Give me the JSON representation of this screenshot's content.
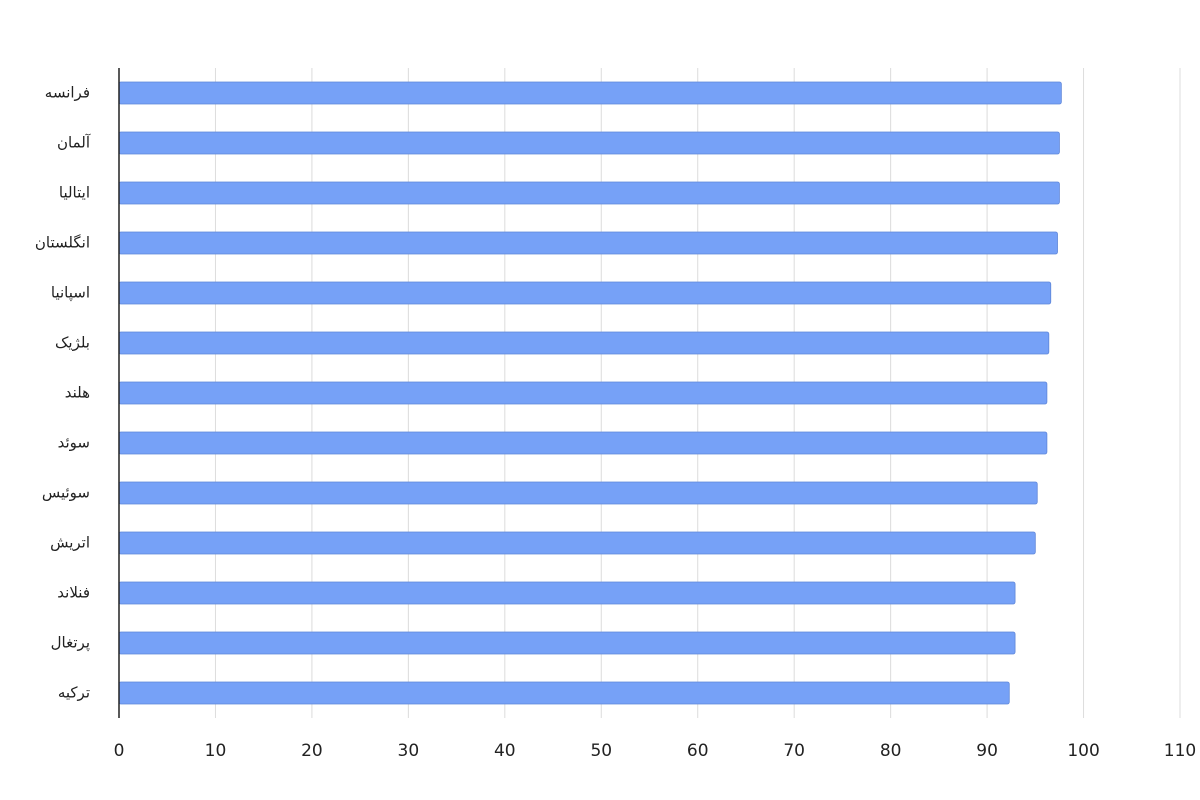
{
  "chart_data": {
    "type": "bar",
    "orientation": "horizontal",
    "categories": [
      "فرانسه",
      "آلمان",
      "ایتالیا",
      "انگلستان",
      "اسپانیا",
      "بلژیک",
      "هلند",
      "سوئد",
      "سوئیس",
      "اتریش",
      "فنلاند",
      "پرتغال",
      "ترکیه"
    ],
    "values": [
      97.7,
      97.5,
      97.5,
      97.3,
      96.6,
      96.4,
      96.2,
      96.2,
      95.2,
      95.0,
      92.9,
      92.9,
      92.3
    ],
    "color": "#76a1f7",
    "xlim": [
      0,
      110
    ],
    "xticks": [
      0,
      10,
      20,
      30,
      40,
      50,
      60,
      70,
      80,
      90,
      100,
      110
    ],
    "grid": true
  }
}
